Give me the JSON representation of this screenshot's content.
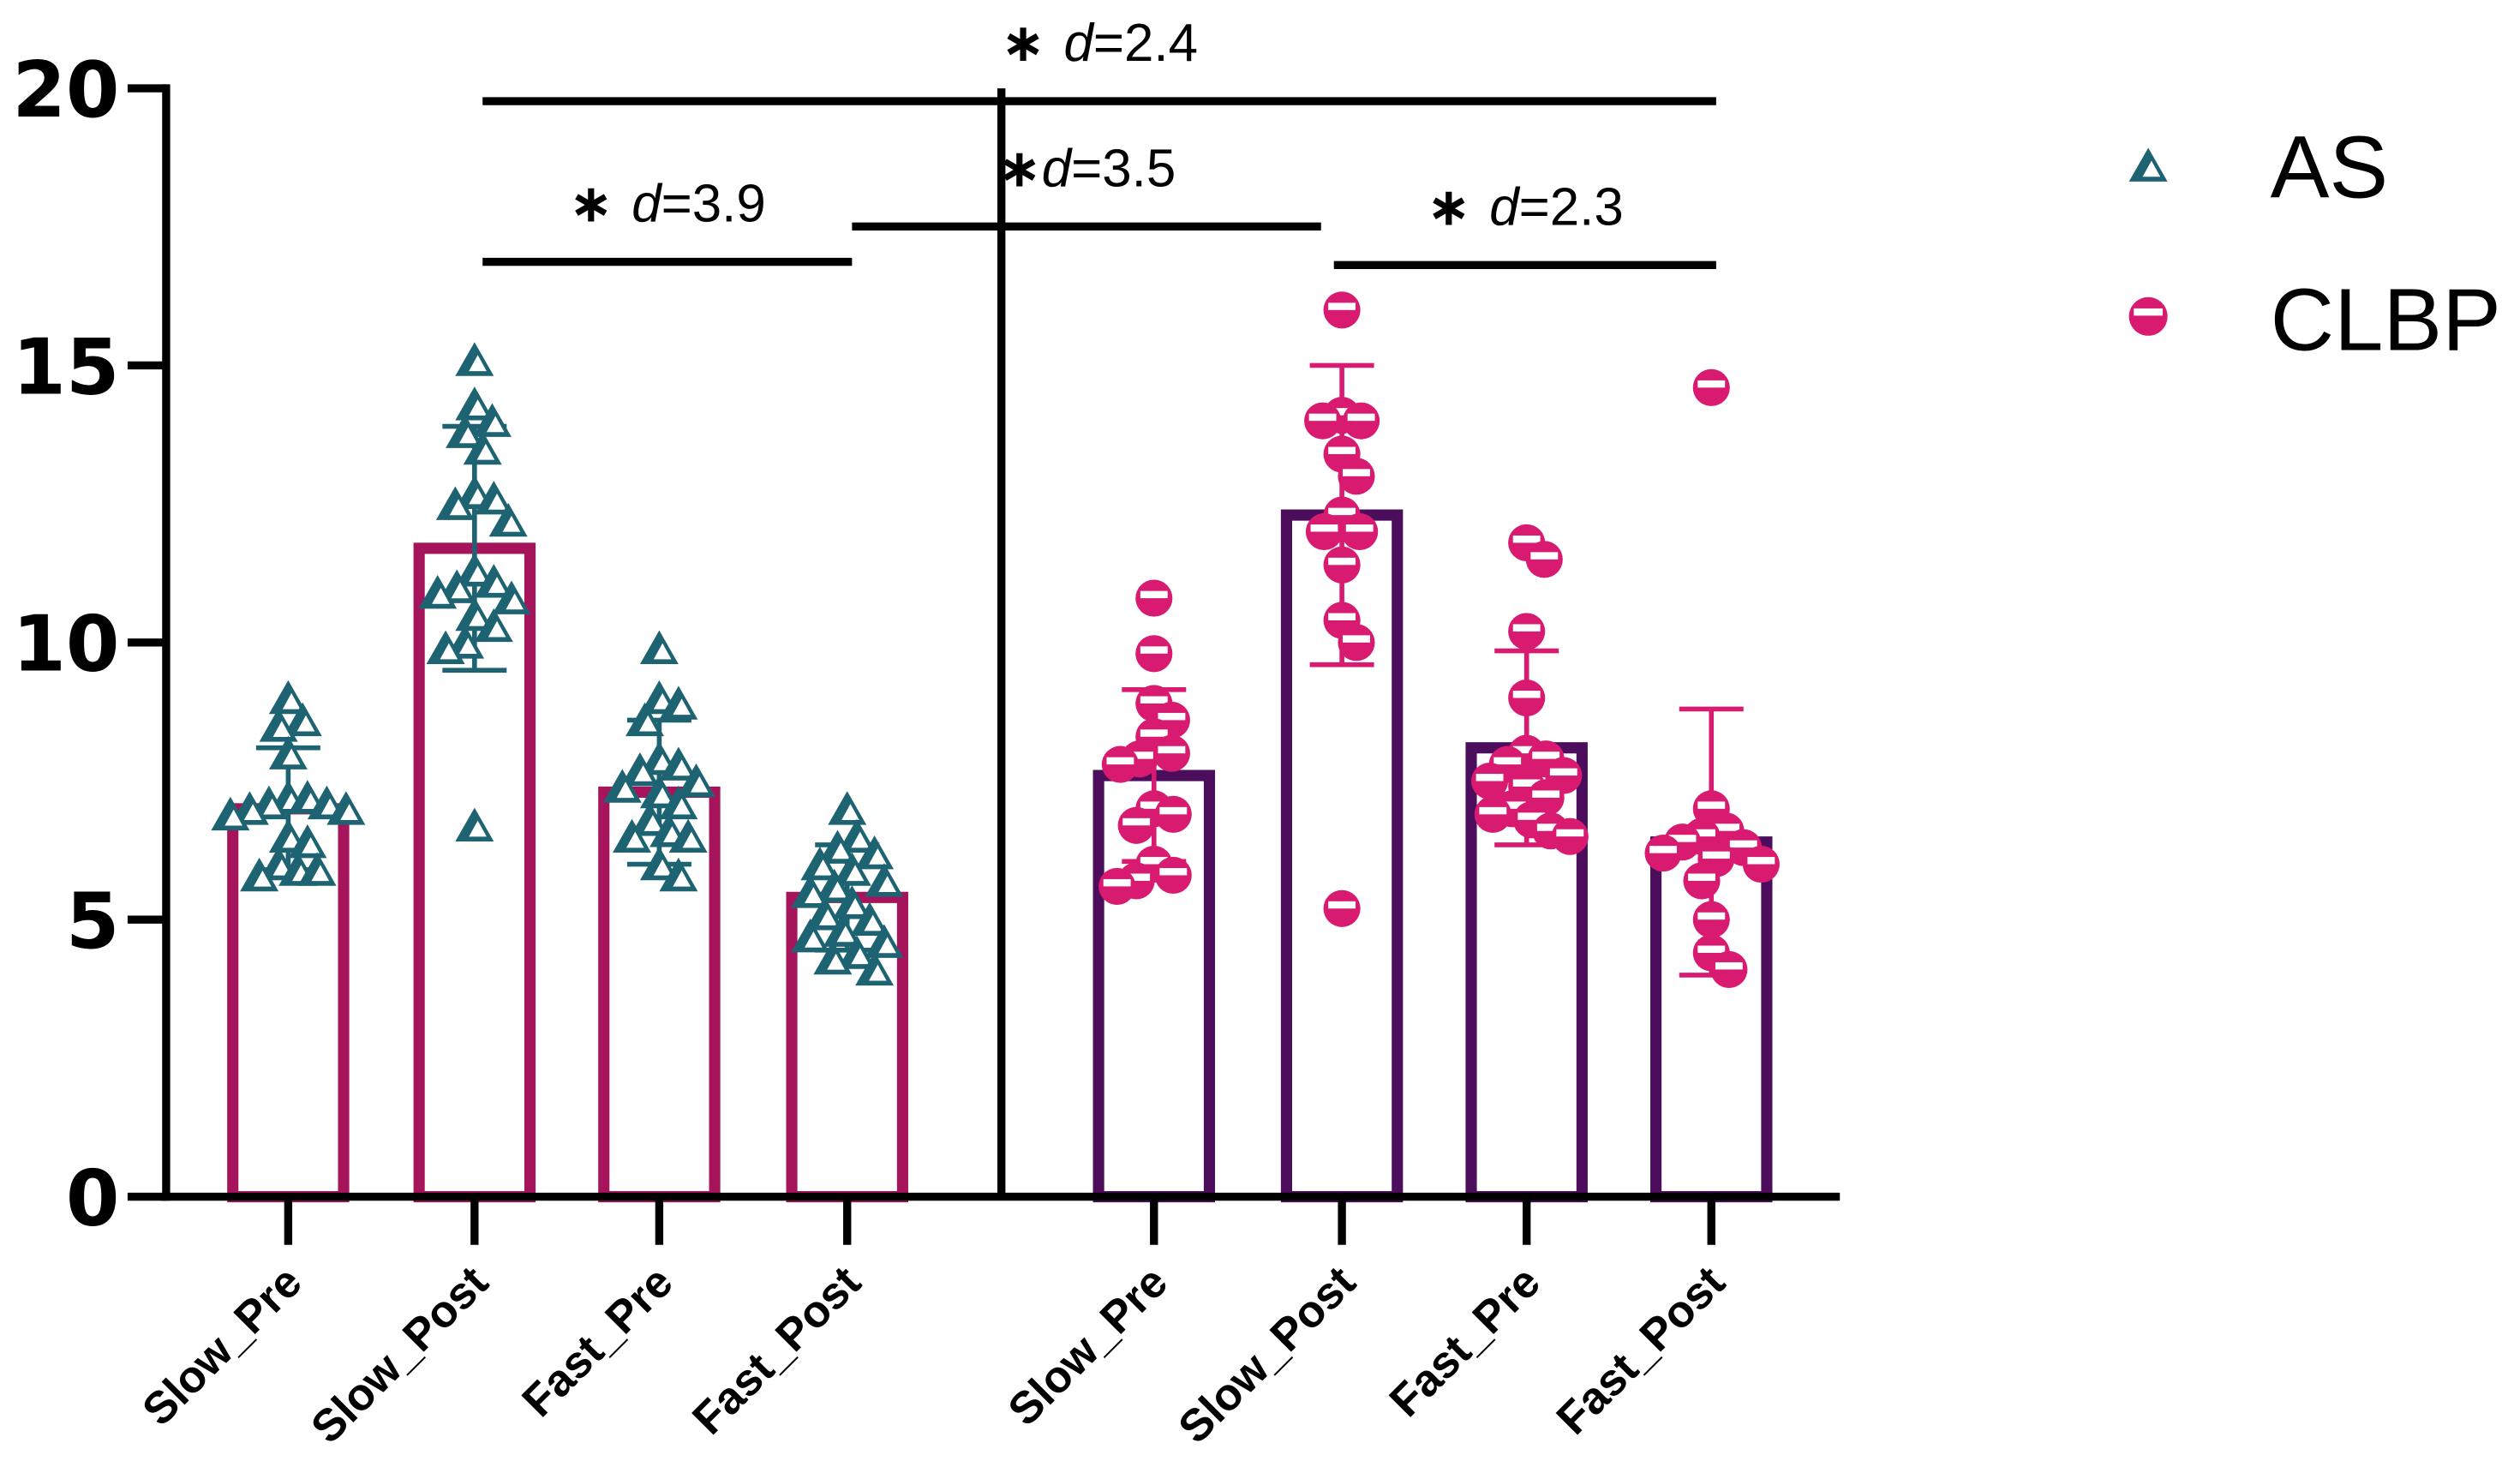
{
  "chart_data": {
    "type": "bar",
    "categories": [
      "Slow_Pre",
      "Slow_Post",
      "Fast_Pre",
      "Fast_Post"
    ],
    "ylim": [
      0,
      20
    ],
    "yticks": [
      0,
      5,
      10,
      15,
      20
    ],
    "grid": false,
    "legend_position": "right",
    "series": [
      {
        "name": "AS",
        "marker": "triangle",
        "bar_color": "#A6155C",
        "marker_color": "#1E6372",
        "values": [
          7.0,
          11.7,
          7.3,
          5.4
        ],
        "error": [
          1.1,
          2.2,
          1.3,
          0.95
        ],
        "points": [
          [
            9.0,
            8.6,
            8.5,
            8.0,
            7.2,
            7.2,
            7.1,
            7.1,
            7.0,
            7.0,
            6.9,
            6.5,
            6.4,
            6.0,
            5.9,
            5.9,
            5.8
          ],
          [
            15.1,
            14.3,
            14.0,
            13.8,
            13.5,
            12.7,
            12.6,
            12.5,
            12.2,
            11.3,
            11.1,
            11.0,
            10.9,
            10.8,
            10.5,
            10.3,
            10.0,
            9.9,
            6.7
          ],
          [
            9.9,
            9.0,
            8.9,
            8.6,
            7.9,
            7.8,
            7.7,
            7.5,
            7.4,
            7.3,
            7.1,
            6.8,
            6.6,
            6.5,
            6.5,
            6.0,
            5.8
          ],
          [
            7.0,
            6.5,
            6.3,
            6.2,
            6.0,
            5.9,
            5.7,
            5.6,
            5.5,
            5.3,
            5.1,
            5.0,
            4.8,
            4.7,
            4.6,
            4.4,
            4.3,
            4.1
          ]
        ]
      },
      {
        "name": "CLBP",
        "marker": "half-circle",
        "bar_color": "#4B0D5C",
        "marker_color": "#D81B70",
        "values": [
          7.6,
          12.3,
          8.1,
          6.4
        ],
        "error": [
          1.55,
          2.7,
          1.75,
          2.4
        ],
        "points": [
          [
            10.8,
            9.8,
            8.9,
            8.6,
            8.3,
            8.0,
            7.9,
            7.8,
            7.0,
            6.9,
            6.7,
            6.0,
            5.8,
            5.7,
            5.6
          ],
          [
            16.0,
            14.1,
            14.0,
            14.0,
            13.4,
            13.0,
            12.3,
            12.0,
            12.0,
            11.4,
            10.4,
            10.0,
            5.2
          ],
          [
            11.8,
            11.5,
            10.2,
            9.0,
            8.0,
            7.9,
            7.8,
            7.6,
            7.5,
            7.4,
            7.2,
            7.0,
            6.9,
            6.8,
            6.6,
            6.5
          ],
          [
            14.6,
            7.0,
            6.6,
            6.5,
            6.4,
            6.3,
            6.2,
            6.1,
            6.0,
            5.7,
            5.0,
            4.4,
            4.1
          ]
        ]
      }
    ],
    "annotations": [
      {
        "star": "∗ ",
        "var": "d",
        "value": "=2.4",
        "from": [
          0,
          1
        ],
        "to": [
          1,
          3
        ]
      },
      {
        "star": "∗ ",
        "var": "d",
        "value": "=3.9",
        "from": [
          0,
          1
        ],
        "to": [
          0,
          3
        ]
      },
      {
        "star": "∗",
        "var": "d",
        "value": "=3.5",
        "from": [
          0,
          3
        ],
        "to": [
          1,
          1
        ]
      },
      {
        "star": "∗ ",
        "var": "d",
        "value": "=2.3",
        "from": [
          1,
          1
        ],
        "to": [
          1,
          3
        ]
      }
    ]
  }
}
